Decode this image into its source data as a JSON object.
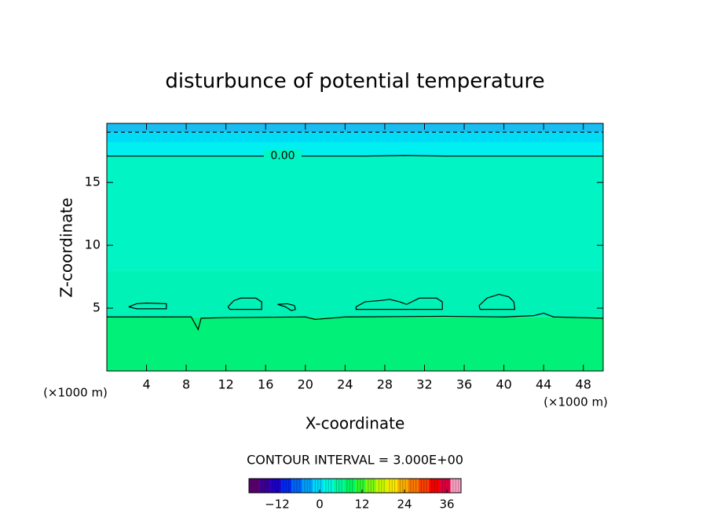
{
  "chart_data": {
    "type": "contour",
    "title": "disturbunce of potential temperature",
    "xlabel": "X-coordinate",
    "ylabel": "Z-coordinate",
    "x_unit_left": "(×1000 m)",
    "x_unit_right": "(×1000 m)",
    "xlim": [
      0,
      50
    ],
    "ylim": [
      0,
      19.7
    ],
    "xticks": [
      4,
      8,
      12,
      16,
      20,
      24,
      28,
      32,
      36,
      40,
      44,
      48
    ],
    "yticks": [
      5,
      10,
      15
    ],
    "fill_bands": [
      {
        "z": [
          19.0,
          19.7
        ],
        "color": "#18bef2"
      },
      {
        "z": [
          18.2,
          19.0
        ],
        "color": "#00dcf6"
      },
      {
        "z": [
          17.1,
          18.2
        ],
        "color": "#00f0f2"
      },
      {
        "z": [
          8.0,
          17.1
        ],
        "color": "#00f4c4"
      },
      {
        "z": [
          4.3,
          8.0
        ],
        "color": "#00f2b6"
      },
      {
        "z": [
          0,
          4.3
        ],
        "color": "#00f078"
      }
    ],
    "contours": [
      {
        "label": "0.00",
        "dashed": false,
        "x": [
          0,
          14,
          26,
          30,
          34,
          50
        ],
        "z": [
          17.1,
          17.1,
          17.1,
          17.15,
          17.1,
          17.1
        ]
      },
      {
        "dashed": true,
        "x": [
          0,
          50
        ],
        "z": [
          19.0,
          19.0
        ]
      },
      {
        "dashed": false,
        "x": [
          0,
          5,
          8.5,
          9.2,
          9.5,
          12,
          20,
          21,
          24,
          34,
          40,
          43,
          44,
          45,
          50
        ],
        "z": [
          4.3,
          4.3,
          4.3,
          3.3,
          4.2,
          4.25,
          4.3,
          4.1,
          4.3,
          4.35,
          4.3,
          4.4,
          4.6,
          4.3,
          4.2
        ]
      },
      {
        "dashed": false,
        "x": [
          2.2,
          3,
          4,
          6,
          6,
          3,
          2.2
        ],
        "z": [
          5.1,
          5.35,
          5.4,
          5.35,
          4.95,
          4.95,
          5.1
        ]
      },
      {
        "dashed": false,
        "x": [
          12.2,
          12.8,
          13.5,
          15,
          15.6,
          15.6,
          12.4,
          12.2
        ],
        "z": [
          5.1,
          5.6,
          5.8,
          5.8,
          5.5,
          4.9,
          4.9,
          5.1
        ]
      },
      {
        "dashed": false,
        "x": [
          17.2,
          18.2,
          18.9,
          19,
          18.6,
          18,
          17.2
        ],
        "z": [
          5.3,
          5.35,
          5.2,
          4.9,
          4.8,
          5.1,
          5.3
        ]
      },
      {
        "dashed": false,
        "x": [
          25.1,
          26,
          27.5,
          28.5,
          29.5,
          30.2,
          31.5,
          33.2,
          33.8,
          33.8,
          25.1,
          25.1
        ],
        "z": [
          5.1,
          5.5,
          5.6,
          5.7,
          5.5,
          5.3,
          5.8,
          5.8,
          5.5,
          4.9,
          4.9,
          5.1
        ]
      },
      {
        "dashed": false,
        "x": [
          37.5,
          38.3,
          39.5,
          40.5,
          41,
          41.1,
          37.6,
          37.5
        ],
        "z": [
          5.2,
          5.8,
          6.1,
          5.9,
          5.5,
          4.9,
          4.9,
          5.2
        ]
      }
    ],
    "contour_interval_text": "CONTOUR INTERVAL = 3.000E+00",
    "colorbar": {
      "lim": [
        -20,
        40
      ],
      "ticks": [
        {
          "value": -12,
          "label": "−12"
        },
        0,
        12,
        24,
        36
      ],
      "colors": [
        "#5a0070",
        "#3c0096",
        "#1e00c8",
        "#0028f0",
        "#0064f8",
        "#00a0f8",
        "#00d8f8",
        "#00f8e0",
        "#00f8a0",
        "#00f860",
        "#30f830",
        "#80f810",
        "#c8f800",
        "#f8e800",
        "#f8b000",
        "#f87800",
        "#f84000",
        "#f80000",
        "#e00040",
        "#f8a0c0"
      ]
    }
  }
}
